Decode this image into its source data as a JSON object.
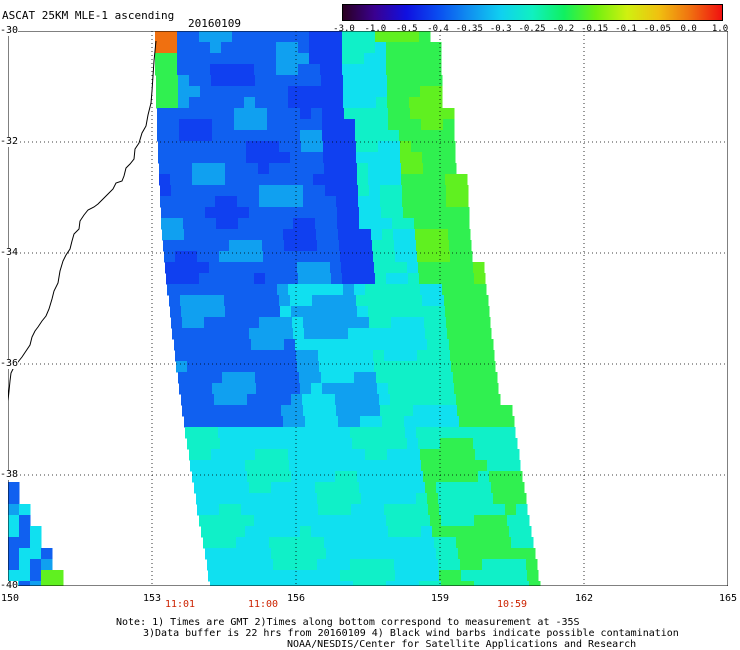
{
  "header": {
    "title": "ASCAT 25KM MLE-1 ascending",
    "date": "20160109"
  },
  "colorbar": {
    "labels": [
      "-3.0",
      "-1.0",
      "-0.5",
      "-0.4",
      "-0.35",
      "-0.3",
      "-0.25",
      "-0.2",
      "-0.15",
      "-0.1",
      "-0.05",
      "0.0",
      "1.0"
    ],
    "colors": [
      "#2a0020",
      "#3a0090",
      "#1010e0",
      "#0a4cf0",
      "#1090f0",
      "#10d0f0",
      "#10f0c0",
      "#10f060",
      "#70f010",
      "#d0f010",
      "#f0c010",
      "#f07010",
      "#f01010"
    ]
  },
  "map": {
    "lat_labels": [
      "-30",
      "-32",
      "-34",
      "-36",
      "-38",
      "-40"
    ],
    "lon_labels": [
      "150",
      "153",
      "156",
      "159",
      "162",
      "165"
    ],
    "time_labels": [
      "11:01",
      "11:00",
      "10:59"
    ],
    "ocean_palette": {
      "deep_blue": "#1040f0",
      "blue": "#1060f0",
      "light_blue": "#10a0f0",
      "cyan": "#10e0f0",
      "aqua": "#10f0c8",
      "green": "#30f050",
      "lime": "#60f020",
      "orange": "#f07010"
    }
  },
  "footer": {
    "line1": "Note: 1) Times are GMT 2)Times along bottom correspond to measurement at -35S",
    "line2": "3)Data buffer is 22 hrs from 20160109 4) Black wind barbs indicate possible contamination",
    "line3": "NOAA/NESDIS/Center for Satellite Applications and Research"
  }
}
